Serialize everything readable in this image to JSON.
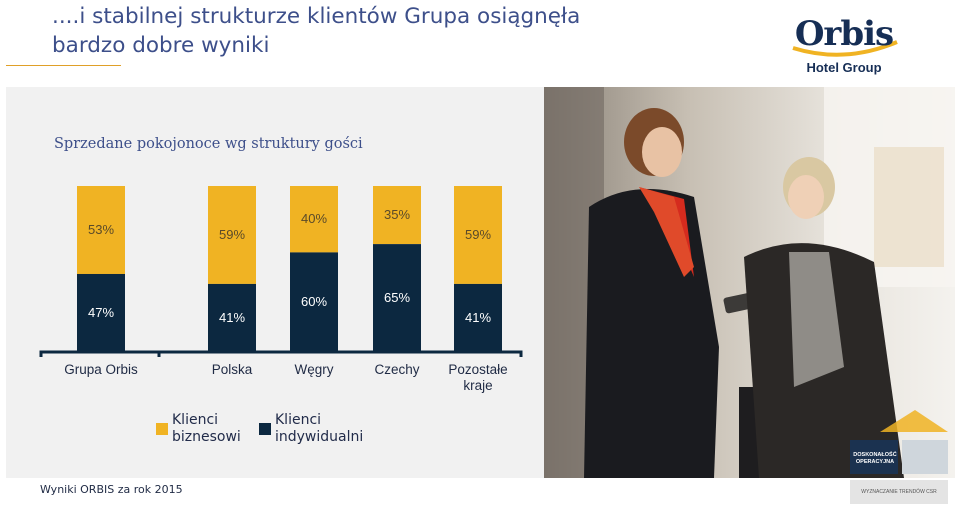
{
  "header": {
    "title_line1": "....i stabilnej strukturze klientów Grupa osiągnęła",
    "title_line2": "bardzo dobre wyniki"
  },
  "logo": {
    "name": "Orbis",
    "subtitle": "Hotel Group"
  },
  "chart_title": "Sprzedane pokojonoce wg struktury gości",
  "colors": {
    "business": "#f0b323",
    "individual": "#0c2840",
    "title": "#3d4f8a"
  },
  "chart_data": {
    "type": "bar",
    "stacked": true,
    "percent": true,
    "categories": [
      "Grupa Orbis",
      "Polska",
      "Węgry",
      "Czechy",
      "Pozostałe kraje"
    ],
    "series": [
      {
        "name": "Klienci biznesowi",
        "values": [
          53,
          59,
          40,
          35,
          59
        ],
        "labels": [
          "53%",
          "59%",
          "40%",
          "35%",
          "59%"
        ]
      },
      {
        "name": "Klienci indywidualni",
        "values": [
          47,
          41,
          60,
          65,
          41
        ],
        "labels": [
          "47%",
          "41%",
          "60%",
          "65%",
          "41%"
        ]
      }
    ],
    "ylim": [
      0,
      100
    ]
  },
  "legend": {
    "business": "Klienci\nbiznesowi",
    "individual": "Klienci\nindywidualni"
  },
  "badges": {
    "operational": "DOSKONAŁOŚĆ\nOPERACYJNA",
    "csr": "WYZNACZANIE TRENDÓW CSR"
  },
  "footer": "Wyniki ORBIS za rok 2015"
}
